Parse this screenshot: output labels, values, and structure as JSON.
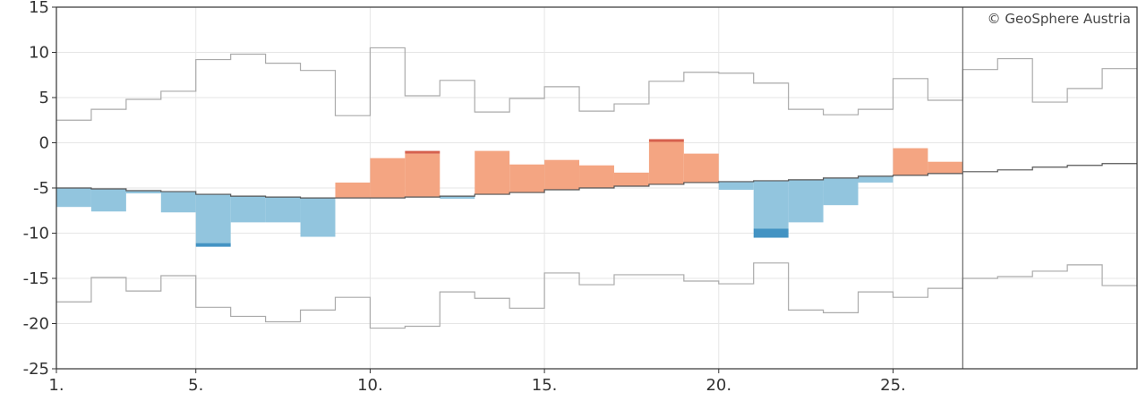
{
  "colors": {
    "above": "#f4a582",
    "above_extreme": "#d6604d",
    "below": "#92c5de",
    "below_extreme": "#4393c3",
    "envelope": "#aaaaaa",
    "mean": "#555555",
    "grid": "#e6e6e6",
    "frame": "#333333",
    "today_line": "#666666"
  },
  "chart_data": {
    "type": "step-area",
    "copyright": "© GeoSphere Austria",
    "ylim": [
      -25,
      15
    ],
    "yticks": [
      15,
      10,
      5,
      0,
      -5,
      -10,
      -15,
      -20,
      -25
    ],
    "ytick_labels": [
      "15",
      "10",
      "5",
      "0",
      "-5",
      "-10",
      "-15",
      "-20",
      "-25"
    ],
    "xlim": [
      1,
      32
    ],
    "xticks": [
      1,
      5,
      10,
      15,
      20,
      25
    ],
    "xtick_labels": [
      "1.",
      "5.",
      "10.",
      "15.",
      "20.",
      "25."
    ],
    "today_day": 27,
    "days": [
      1,
      2,
      3,
      4,
      5,
      6,
      7,
      8,
      9,
      10,
      11,
      12,
      13,
      14,
      15,
      16,
      17,
      18,
      19,
      20,
      21,
      22,
      23,
      24,
      25,
      26,
      27,
      28,
      29,
      30,
      31
    ],
    "observed": [
      -7.1,
      -7.6,
      -5.6,
      -7.7,
      -11.1,
      -8.8,
      -8.8,
      -10.4,
      -4.4,
      -1.7,
      -1.2,
      -6.2,
      -0.9,
      -2.4,
      -1.9,
      -2.5,
      -3.3,
      0.1,
      -1.2,
      -5.2,
      -9.5,
      -8.8,
      -6.9,
      -4.4,
      -0.6,
      -2.1,
      null,
      null,
      null,
      null,
      null
    ],
    "mean": [
      -5.0,
      -5.1,
      -5.3,
      -5.4,
      -5.7,
      -5.9,
      -6.0,
      -6.1,
      -6.1,
      -6.1,
      -6.0,
      -5.9,
      -5.7,
      -5.5,
      -5.2,
      -5.0,
      -4.8,
      -4.6,
      -4.4,
      -4.3,
      -4.2,
      -4.1,
      -3.9,
      -3.7,
      -3.6,
      -3.4,
      -3.2,
      -3.0,
      -2.7,
      -2.5,
      -2.3
    ],
    "upper_envelope": [
      2.5,
      3.7,
      4.8,
      5.7,
      9.2,
      9.8,
      8.8,
      8.0,
      3.0,
      10.5,
      5.2,
      6.9,
      3.4,
      4.9,
      6.2,
      3.5,
      4.3,
      6.8,
      7.8,
      7.7,
      6.6,
      3.7,
      3.1,
      3.7,
      7.1,
      4.7,
      8.1,
      9.3,
      4.5,
      6.0,
      8.2
    ],
    "lower_envelope": [
      -17.6,
      -14.9,
      -16.4,
      -14.7,
      -18.2,
      -19.2,
      -19.8,
      -18.5,
      -17.1,
      -20.5,
      -20.3,
      -16.5,
      -17.2,
      -18.3,
      -14.4,
      -15.7,
      -14.6,
      -14.6,
      -15.3,
      -15.6,
      -13.3,
      -18.5,
      -18.8,
      -16.5,
      -17.1,
      -16.1,
      -15.0,
      -14.8,
      -14.2,
      -13.5,
      -15.8
    ],
    "extreme_highlights": [
      {
        "day": 11,
        "from": -1.2,
        "to": -0.9,
        "kind": "above"
      },
      {
        "day": 18,
        "from": 0.1,
        "to": 0.4,
        "kind": "above"
      },
      {
        "day": 5,
        "from": -11.1,
        "to": -11.5,
        "kind": "below"
      },
      {
        "day": 21,
        "from": -9.5,
        "to": -10.5,
        "kind": "below"
      }
    ]
  }
}
